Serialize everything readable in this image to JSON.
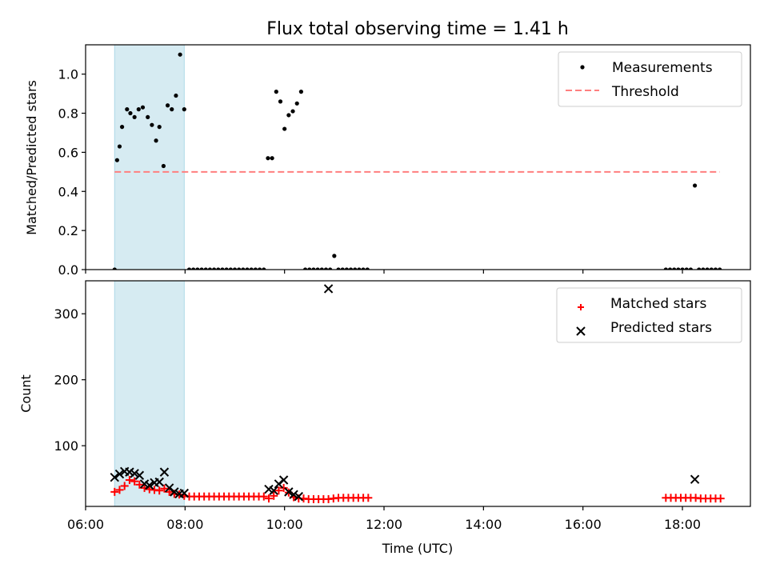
{
  "chart_data": [
    {
      "type": "scatter",
      "title": "Flux total observing time = 1.41 h",
      "xlabel": "",
      "ylabel": "Matched/Predicted stars",
      "xlim": [
        "06:00",
        "19:22"
      ],
      "ylim": [
        0,
        1.15
      ],
      "yticks": [
        "0.0",
        "0.2",
        "0.4",
        "0.6",
        "0.8",
        "1.0"
      ],
      "shaded_region": {
        "start": "06:35",
        "end": "07:59",
        "color": "#add8e6"
      },
      "legend": {
        "position": "top-right"
      },
      "series": [
        {
          "name": "Measurements",
          "marker": "dot",
          "color": "#000000",
          "points": [
            [
              "06:35",
              0.0
            ],
            [
              "06:38",
              0.56
            ],
            [
              "06:41",
              0.63
            ],
            [
              "06:44",
              0.73
            ],
            [
              "06:50",
              0.82
            ],
            [
              "06:54",
              0.8
            ],
            [
              "06:59",
              0.78
            ],
            [
              "07:04",
              0.82
            ],
            [
              "07:09",
              0.83
            ],
            [
              "07:15",
              0.78
            ],
            [
              "07:20",
              0.74
            ],
            [
              "07:25",
              0.66
            ],
            [
              "07:29",
              0.73
            ],
            [
              "07:34",
              0.53
            ],
            [
              "07:39",
              0.84
            ],
            [
              "07:44",
              0.82
            ],
            [
              "07:49",
              0.89
            ],
            [
              "07:54",
              1.1
            ],
            [
              "07:59",
              0.82
            ],
            [
              "08:05",
              0.0
            ],
            [
              "08:10",
              0.0
            ],
            [
              "08:15",
              0.0
            ],
            [
              "08:20",
              0.0
            ],
            [
              "08:25",
              0.0
            ],
            [
              "08:30",
              0.0
            ],
            [
              "08:35",
              0.0
            ],
            [
              "08:40",
              0.0
            ],
            [
              "08:45",
              0.0
            ],
            [
              "08:50",
              0.0
            ],
            [
              "08:55",
              0.0
            ],
            [
              "09:00",
              0.0
            ],
            [
              "09:05",
              0.0
            ],
            [
              "09:10",
              0.0
            ],
            [
              "09:15",
              0.0
            ],
            [
              "09:20",
              0.0
            ],
            [
              "09:25",
              0.0
            ],
            [
              "09:30",
              0.0
            ],
            [
              "09:35",
              0.0
            ],
            [
              "09:40",
              0.57
            ],
            [
              "09:45",
              0.57
            ],
            [
              "09:50",
              0.91
            ],
            [
              "09:55",
              0.86
            ],
            [
              "10:00",
              0.72
            ],
            [
              "10:05",
              0.79
            ],
            [
              "10:10",
              0.81
            ],
            [
              "10:15",
              0.85
            ],
            [
              "10:20",
              0.91
            ],
            [
              "10:25",
              0.0
            ],
            [
              "10:30",
              0.0
            ],
            [
              "10:35",
              0.0
            ],
            [
              "10:40",
              0.0
            ],
            [
              "10:45",
              0.0
            ],
            [
              "10:50",
              0.0
            ],
            [
              "10:55",
              0.0
            ],
            [
              "11:00",
              0.07
            ],
            [
              "11:05",
              0.0
            ],
            [
              "11:10",
              0.0
            ],
            [
              "11:15",
              0.0
            ],
            [
              "11:20",
              0.0
            ],
            [
              "11:25",
              0.0
            ],
            [
              "11:30",
              0.0
            ],
            [
              "11:35",
              0.0
            ],
            [
              "11:40",
              0.0
            ],
            [
              "17:40",
              0.0
            ],
            [
              "17:45",
              0.0
            ],
            [
              "17:50",
              0.0
            ],
            [
              "17:55",
              0.0
            ],
            [
              "18:00",
              0.0
            ],
            [
              "18:05",
              0.0
            ],
            [
              "18:10",
              0.0
            ],
            [
              "18:15",
              0.43
            ],
            [
              "18:20",
              0.0
            ],
            [
              "18:25",
              0.0
            ],
            [
              "18:30",
              0.0
            ],
            [
              "18:35",
              0.0
            ],
            [
              "18:40",
              0.0
            ],
            [
              "18:45",
              0.0
            ]
          ]
        },
        {
          "name": "Threshold",
          "marker": "dashed-line",
          "color": "#ff7f7f",
          "points": [
            [
              "06:35",
              0.5
            ],
            [
              "18:45",
              0.5
            ]
          ]
        }
      ]
    },
    {
      "type": "scatter",
      "title": "",
      "xlabel": "Time (UTC)",
      "ylabel": "Count",
      "xlim": [
        "06:00",
        "19:22"
      ],
      "ylim": [
        8,
        350
      ],
      "yticks": [
        "100",
        "200",
        "300"
      ],
      "xticks": [
        "06:00",
        "08:00",
        "10:00",
        "12:00",
        "14:00",
        "16:00",
        "18:00"
      ],
      "shaded_region": {
        "start": "06:35",
        "end": "07:59",
        "color": "#add8e6"
      },
      "legend": {
        "position": "top-right"
      },
      "series": [
        {
          "name": "Matched stars",
          "marker": "plus",
          "color": "#ff0000",
          "points": [
            [
              "06:35",
              30
            ],
            [
              "06:41",
              33
            ],
            [
              "06:47",
              39
            ],
            [
              "06:53",
              48
            ],
            [
              "06:59",
              46
            ],
            [
              "07:05",
              41
            ],
            [
              "07:11",
              36
            ],
            [
              "07:17",
              34
            ],
            [
              "07:23",
              33
            ],
            [
              "07:29",
              32
            ],
            [
              "07:35",
              35
            ],
            [
              "07:41",
              30
            ],
            [
              "07:47",
              27
            ],
            [
              "07:53",
              26
            ],
            [
              "07:59",
              24
            ],
            [
              "08:05",
              23
            ],
            [
              "08:11",
              23
            ],
            [
              "08:17",
              23
            ],
            [
              "08:23",
              23
            ],
            [
              "08:29",
              23
            ],
            [
              "08:35",
              23
            ],
            [
              "08:41",
              23
            ],
            [
              "08:47",
              23
            ],
            [
              "08:53",
              23
            ],
            [
              "08:59",
              23
            ],
            [
              "09:05",
              23
            ],
            [
              "09:11",
              23
            ],
            [
              "09:17",
              23
            ],
            [
              "09:23",
              23
            ],
            [
              "09:29",
              23
            ],
            [
              "09:35",
              23
            ],
            [
              "09:41",
              20
            ],
            [
              "09:47",
              24
            ],
            [
              "09:53",
              32
            ],
            [
              "09:59",
              36
            ],
            [
              "10:05",
              29
            ],
            [
              "10:11",
              22
            ],
            [
              "10:17",
              20
            ],
            [
              "10:23",
              20
            ],
            [
              "10:29",
              19
            ],
            [
              "10:35",
              19
            ],
            [
              "10:41",
              19
            ],
            [
              "10:47",
              19
            ],
            [
              "10:53",
              19
            ],
            [
              "10:59",
              20
            ],
            [
              "11:05",
              21
            ],
            [
              "11:11",
              21
            ],
            [
              "11:17",
              21
            ],
            [
              "11:23",
              21
            ],
            [
              "11:29",
              21
            ],
            [
              "11:35",
              21
            ],
            [
              "11:41",
              21
            ],
            [
              "17:40",
              21
            ],
            [
              "17:46",
              21
            ],
            [
              "17:52",
              21
            ],
            [
              "17:58",
              21
            ],
            [
              "18:04",
              21
            ],
            [
              "18:10",
              21
            ],
            [
              "18:16",
              21
            ],
            [
              "18:22",
              20
            ],
            [
              "18:28",
              20
            ],
            [
              "18:34",
              20
            ],
            [
              "18:40",
              20
            ],
            [
              "18:46",
              20
            ]
          ]
        },
        {
          "name": "Predicted stars",
          "marker": "x",
          "color": "#000000",
          "points": [
            [
              "06:35",
              52
            ],
            [
              "06:41",
              57
            ],
            [
              "06:47",
              61
            ],
            [
              "06:53",
              60
            ],
            [
              "06:59",
              58
            ],
            [
              "07:05",
              55
            ],
            [
              "07:11",
              42
            ],
            [
              "07:17",
              40
            ],
            [
              "07:23",
              44
            ],
            [
              "07:29",
              45
            ],
            [
              "07:35",
              60
            ],
            [
              "07:41",
              36
            ],
            [
              "07:47",
              30
            ],
            [
              "07:53",
              27
            ],
            [
              "07:59",
              28
            ],
            [
              "09:41",
              34
            ],
            [
              "09:47",
              32
            ],
            [
              "09:53",
              42
            ],
            [
              "09:59",
              48
            ],
            [
              "10:05",
              30
            ],
            [
              "10:11",
              26
            ],
            [
              "10:17",
              23
            ],
            [
              "10:53",
              338
            ],
            [
              "18:15",
              49
            ]
          ]
        }
      ]
    }
  ]
}
